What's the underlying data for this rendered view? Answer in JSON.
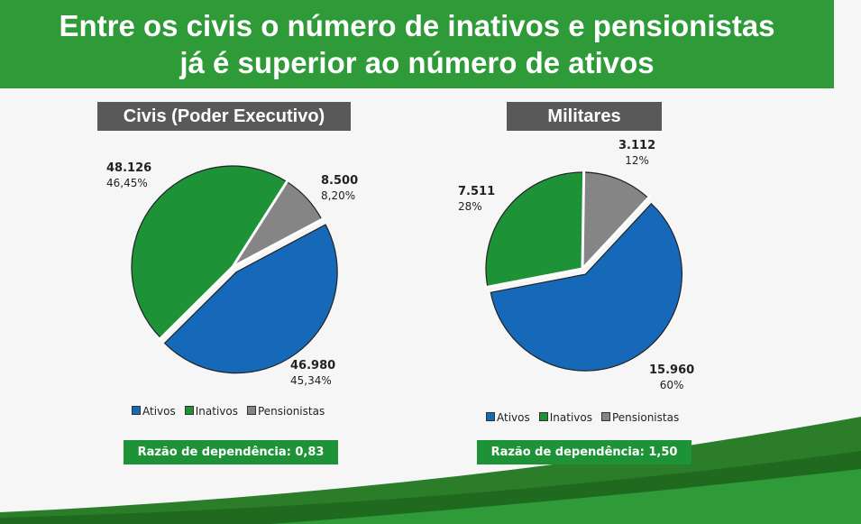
{
  "title_line1": "Entre os civis o número de inativos e pensionistas",
  "title_line2": "já é superior ao número de ativos",
  "colors": {
    "Ativos": "#1569b8",
    "Inativos": "#1e9237",
    "Pensionistas": "#858585",
    "header": "#2f9a38"
  },
  "chart_data": [
    {
      "type": "pie",
      "title": "Civis (Poder Executivo)",
      "categories": [
        "Ativos",
        "Inativos",
        "Pensionistas"
      ],
      "values": [
        46980,
        48126,
        8500
      ],
      "value_labels": [
        "46.980",
        "48.126",
        "8.500"
      ],
      "percent_labels": [
        "45,34%",
        "46,45%",
        "8,20%"
      ],
      "legend": [
        "Ativos",
        "Inativos",
        "Pensionistas"
      ],
      "legend_position": "bottom",
      "footer": "Razão de dependência: 0,83"
    },
    {
      "type": "pie",
      "title": "Militares",
      "categories": [
        "Ativos",
        "Inativos",
        "Pensionistas"
      ],
      "values": [
        15960,
        7511,
        3112
      ],
      "value_labels": [
        "15.960",
        "7.511",
        "3.112"
      ],
      "percent_labels": [
        "60%",
        "28%",
        "12%"
      ],
      "legend": [
        "Ativos",
        "Inativos",
        "Pensionistas"
      ],
      "legend_position": "bottom",
      "footer": "Razão de dependência: 1,50"
    }
  ]
}
